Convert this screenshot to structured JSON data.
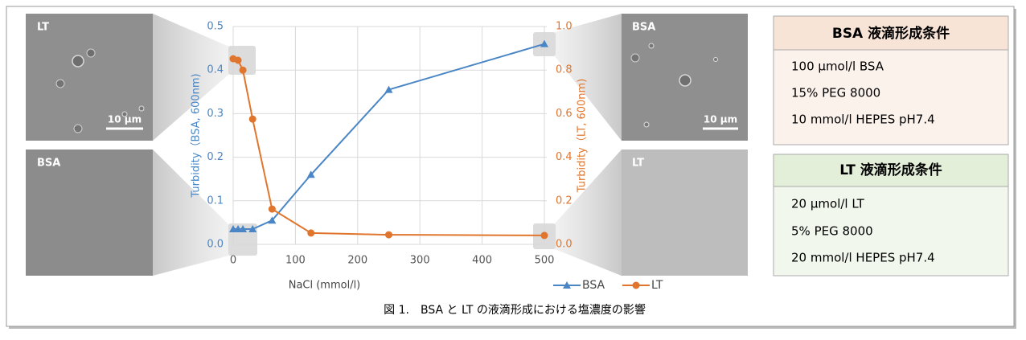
{
  "chart_data": {
    "type": "line",
    "x": [
      0,
      7.8,
      15.6,
      31.25,
      62.5,
      125,
      250,
      500
    ],
    "series": [
      {
        "name": "BSA",
        "color": "#4a86c5",
        "marker": "triangle",
        "values": [
          0.035,
          0.035,
          0.035,
          0.035,
          0.055,
          0.16,
          0.355,
          0.46
        ]
      },
      {
        "name": "LT",
        "color": "#e0762e",
        "marker": "circle",
        "axis": "y2",
        "values": [
          0.852,
          0.845,
          0.8,
          0.575,
          0.162,
          0.052,
          0.044,
          0.041
        ]
      }
    ],
    "xlabel": "NaCl (mmol/l)",
    "ylabel": "Turbidity（BSA, 600nm)",
    "y2label": "Turbidity（LT, 600nm)",
    "xlim": [
      0,
      500
    ],
    "xticks": [
      0,
      100,
      200,
      300,
      400,
      500
    ],
    "ylim": [
      0,
      0.5
    ],
    "yticks": [
      {
        "value": 0,
        "label": "0.0"
      },
      0.1,
      0.2,
      0.3,
      0.4,
      0.5
    ],
    "y2lim": [
      0,
      1
    ],
    "y2ticks": [
      {
        "value": 0,
        "label": "0.0"
      },
      0.2,
      0.4,
      0.6,
      0.8,
      {
        "value": 1,
        "label": "1.0"
      }
    ],
    "grid": true,
    "legend": "bottom"
  },
  "panels": [
    {
      "label": "LT",
      "scale_bar": "10 μm"
    },
    {
      "label": "BSA"
    },
    {
      "label": "BSA",
      "scale_bar": "10 μm"
    },
    {
      "label": "LT"
    }
  ],
  "conditions": [
    {
      "title": "BSA 液滴形成条件",
      "lines": [
        "100 μmol/l BSA",
        "15% PEG 8000",
        "10 mmol/l HEPES pH7.4"
      ]
    },
    {
      "title": "LT 液滴形成条件",
      "lines": [
        "20 μmol/l LT",
        "5% PEG 8000",
        "20 mmol/l HEPES pH7.4"
      ]
    }
  ],
  "caption": "図 1.　BSA と LT の液滴形成における塩濃度の影響"
}
